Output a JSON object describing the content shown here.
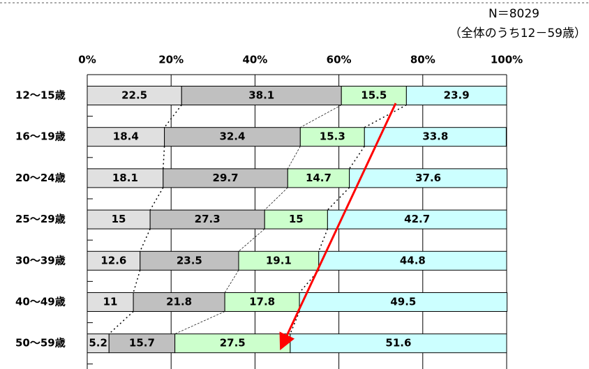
{
  "chart_data": {
    "type": "stacked-barh",
    "note_n": "N＝8029",
    "note_scope": "（全体のうち12－59歳）",
    "categories": [
      "12～15歳",
      "16～19歳",
      "20～24歳",
      "25～29歳",
      "30～39歳",
      "40～49歳",
      "50～59歳"
    ],
    "series": [
      {
        "color": "#e0e0e0",
        "values": [
          22.5,
          18.4,
          18.1,
          15,
          12.6,
          11,
          5.2
        ]
      },
      {
        "color": "#c0c0c0",
        "values": [
          38.1,
          32.4,
          29.7,
          27.3,
          23.5,
          21.8,
          15.7
        ]
      },
      {
        "color": "#ccffcc",
        "values": [
          15.5,
          15.3,
          14.7,
          15,
          19.1,
          17.8,
          27.5
        ]
      },
      {
        "color": "#ccffff",
        "values": [
          23.9,
          33.8,
          37.6,
          42.7,
          44.8,
          49.5,
          51.6
        ]
      }
    ],
    "xlim": [
      0,
      100
    ],
    "xticks": [
      {
        "value": 0,
        "label": "0%"
      },
      {
        "value": 20,
        "label": "20%"
      },
      {
        "value": 40,
        "label": "40%"
      },
      {
        "value": 60,
        "label": "60%"
      },
      {
        "value": 80,
        "label": "80%"
      },
      {
        "value": 100,
        "label": "100%"
      }
    ],
    "grid": true
  }
}
